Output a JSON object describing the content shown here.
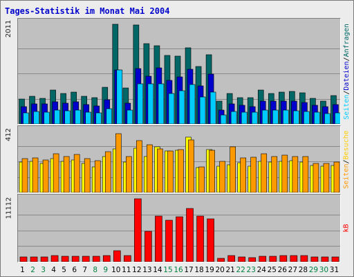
{
  "title": "Tages-Statistik im Monat Mai 2004",
  "colors": {
    "anfragen": "#006666",
    "dateien": "#0000cc",
    "seiten": "#00ccff",
    "besuche": "#ffff00",
    "seiten_visits": "#ff9900",
    "kb": "#ff0000",
    "weekday_label": "#000000",
    "weekend_label": "#008040"
  },
  "legend": {
    "top": [
      {
        "key": "anfragen",
        "label": "Anfragen"
      },
      {
        "key": "dateien",
        "label": "Dateien"
      },
      {
        "key": "seiten",
        "label": "Seiten"
      }
    ],
    "middle": [
      {
        "key": "besuche",
        "label": "Besuche"
      },
      {
        "key": "seiten_visits",
        "label": "Seiten"
      }
    ],
    "bottom": [
      {
        "key": "kb",
        "label": "kB"
      }
    ],
    "separator": "/"
  },
  "chart_data": [
    {
      "type": "bar",
      "panel": "top",
      "categories": [
        "1",
        "2",
        "3",
        "4",
        "5",
        "6",
        "7",
        "8",
        "9",
        "10",
        "11",
        "12",
        "13",
        "14",
        "15",
        "16",
        "17",
        "18",
        "19",
        "20",
        "21",
        "22",
        "23",
        "24",
        "25",
        "26",
        "27",
        "28",
        "29",
        "30",
        "31"
      ],
      "ymax_label": "2011",
      "ylim": [
        0,
        2011
      ],
      "grid": true,
      "series": [
        {
          "name": "Anfragen",
          "values": [
            490,
            550,
            510,
            680,
            610,
            640,
            550,
            530,
            730,
            1990,
            710,
            1970,
            1600,
            1560,
            1370,
            1350,
            1520,
            1140,
            1380,
            450,
            600,
            530,
            530,
            680,
            600,
            640,
            650,
            620,
            510,
            460,
            560
          ]
        },
        {
          "name": "Dateien",
          "values": [
            350,
            400,
            400,
            440,
            420,
            440,
            380,
            360,
            480,
            1080,
            420,
            1100,
            950,
            1120,
            870,
            930,
            1090,
            760,
            990,
            280,
            400,
            370,
            350,
            450,
            460,
            450,
            460,
            430,
            370,
            340,
            380
          ]
        },
        {
          "name": "Seiten",
          "values": [
            220,
            250,
            230,
            280,
            260,
            270,
            240,
            220,
            300,
            1080,
            280,
            800,
            800,
            800,
            600,
            660,
            790,
            540,
            630,
            180,
            250,
            240,
            230,
            270,
            270,
            270,
            260,
            250,
            240,
            200,
            220
          ]
        }
      ]
    },
    {
      "type": "bar",
      "panel": "middle",
      "categories": [
        "1",
        "2",
        "3",
        "4",
        "5",
        "6",
        "7",
        "8",
        "9",
        "10",
        "11",
        "12",
        "13",
        "14",
        "15",
        "16",
        "17",
        "18",
        "19",
        "20",
        "21",
        "22",
        "23",
        "24",
        "25",
        "26",
        "27",
        "28",
        "29",
        "30",
        "31"
      ],
      "ymax_label": "412",
      "ylim": [
        0,
        412
      ],
      "grid": true,
      "series": [
        {
          "name": "Besuche",
          "values": [
            200,
            205,
            190,
            225,
            205,
            215,
            190,
            170,
            240,
            290,
            200,
            295,
            240,
            300,
            275,
            280,
            365,
            165,
            285,
            175,
            185,
            195,
            175,
            205,
            200,
            205,
            210,
            200,
            180,
            175,
            180
          ]
        },
        {
          "name": "Seiten",
          "values": [
            225,
            230,
            215,
            255,
            240,
            250,
            225,
            210,
            270,
            390,
            240,
            345,
            315,
            290,
            275,
            285,
            350,
            170,
            280,
            205,
            300,
            230,
            235,
            255,
            240,
            245,
            240,
            240,
            190,
            190,
            200
          ]
        }
      ]
    },
    {
      "type": "bar",
      "panel": "bottom",
      "categories": [
        "1",
        "2",
        "3",
        "4",
        "5",
        "6",
        "7",
        "8",
        "9",
        "10",
        "11",
        "12",
        "13",
        "14",
        "15",
        "16",
        "17",
        "18",
        "19",
        "20",
        "21",
        "22",
        "23",
        "24",
        "25",
        "26",
        "27",
        "28",
        "29",
        "30",
        "31"
      ],
      "ymax_label": "11112",
      "ylim": [
        0,
        11112
      ],
      "grid": true,
      "series": [
        {
          "name": "kB",
          "values": [
            850,
            850,
            850,
            1050,
            1000,
            950,
            950,
            950,
            1050,
            2000,
            1100,
            11100,
            5400,
            8100,
            7300,
            7900,
            9400,
            8100,
            7600,
            650,
            1100,
            900,
            750,
            1000,
            1000,
            1050,
            1100,
            1050,
            850,
            850,
            850
          ]
        }
      ]
    }
  ],
  "x_label_colors": [
    "weekday",
    "weekend",
    "weekend",
    "weekday",
    "weekday",
    "weekday",
    "weekday",
    "weekend",
    "weekend",
    "weekday",
    "weekday",
    "weekday",
    "weekday",
    "weekday",
    "weekend",
    "weekend",
    "weekday",
    "weekday",
    "weekday",
    "weekday",
    "weekday",
    "weekend",
    "weekend",
    "weekday",
    "weekday",
    "weekday",
    "weekday",
    "weekday",
    "weekend",
    "weekend",
    "weekday"
  ]
}
